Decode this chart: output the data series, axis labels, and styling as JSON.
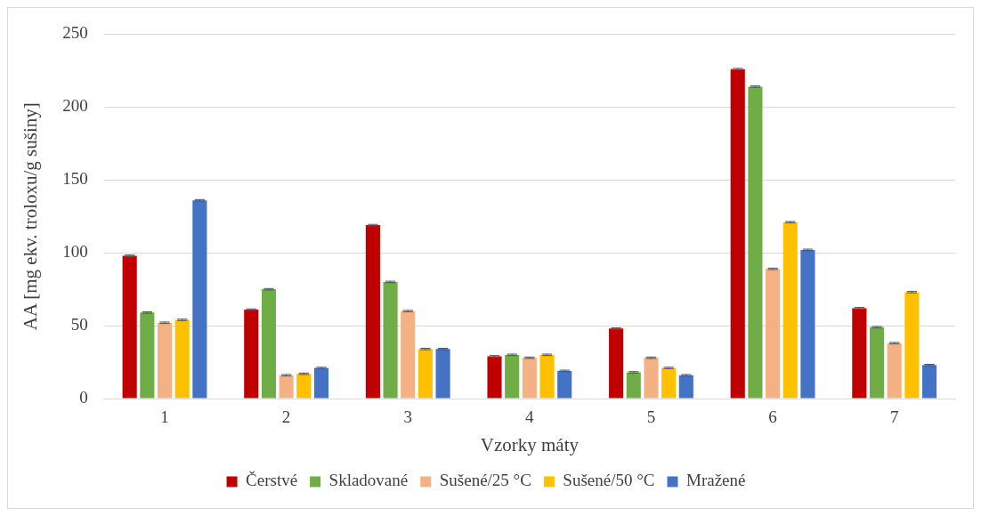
{
  "chart_data": {
    "type": "bar",
    "xlabel": "Vzorky máty",
    "ylabel": "AA [mg ekv. troloxu/g sušiny]",
    "categories": [
      "1",
      "2",
      "3",
      "4",
      "5",
      "6",
      "7"
    ],
    "series": [
      {
        "name": "Čerstvé",
        "color": "#c00000",
        "values": [
          98,
          61,
          119,
          29,
          48,
          226,
          62
        ],
        "errors": [
          0.5,
          0.5,
          0.5,
          0.5,
          0.5,
          0.5,
          0.5
        ]
      },
      {
        "name": "Skladované",
        "color": "#70ad47",
        "values": [
          59,
          75,
          80,
          30,
          18,
          214,
          49
        ],
        "errors": [
          0.5,
          0.5,
          0.5,
          0.5,
          0.5,
          0.5,
          0.5
        ]
      },
      {
        "name": "Sušené/25 °C",
        "color": "#f4b183",
        "values": [
          52,
          16,
          60,
          28,
          28,
          89,
          38
        ],
        "errors": [
          0.5,
          0.5,
          0.5,
          0.5,
          0.5,
          0.5,
          0.5
        ]
      },
      {
        "name": "Sušené/50 °C",
        "color": "#ffc000",
        "values": [
          54,
          17,
          34,
          30,
          21,
          121,
          73
        ],
        "errors": [
          0.5,
          0.5,
          0.5,
          0.5,
          0.5,
          0.5,
          0.5
        ]
      },
      {
        "name": "Mražené",
        "color": "#4472c4",
        "values": [
          136,
          21,
          34,
          19,
          16,
          102,
          23
        ],
        "errors": [
          0.5,
          0.5,
          0.5,
          0.5,
          0.5,
          0.5,
          0.5
        ]
      }
    ],
    "ylim": [
      0,
      250
    ],
    "yticks": [
      0,
      50,
      100,
      150,
      200,
      250
    ],
    "grid": "y",
    "legend": "bottom"
  }
}
